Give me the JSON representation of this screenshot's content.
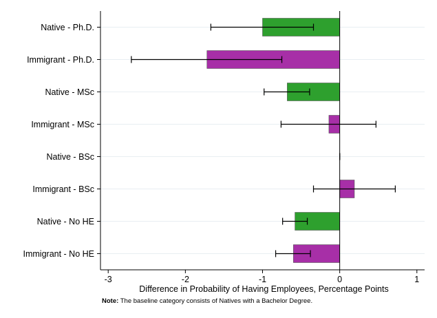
{
  "chart_data": {
    "type": "bar",
    "orientation": "horizontal",
    "categories": [
      "Native - Ph.D.",
      "Immigrant - Ph.D.",
      "Native - MSc",
      "Immigrant - MSc",
      "Native - BSc",
      "Immigrant - BSc",
      "Native - No HE",
      "Immigrant - No HE"
    ],
    "values": [
      -1.0,
      -1.72,
      -0.68,
      -0.14,
      0.0,
      0.19,
      -0.58,
      -0.6
    ],
    "ci_low": [
      -1.67,
      -2.7,
      -0.98,
      -0.76,
      0.0,
      -0.34,
      -0.74,
      -0.83
    ],
    "ci_high": [
      -0.34,
      -0.75,
      -0.39,
      0.47,
      0.0,
      0.72,
      -0.42,
      -0.38
    ],
    "bar_colors": [
      "#2ea02e",
      "#a72fa7",
      "#2ea02e",
      "#a72fa7",
      "#2ea02e",
      "#a72fa7",
      "#2ea02e",
      "#a72fa7"
    ],
    "xlabel": "Difference in Probability of Having Employees, Percentage Points",
    "ylabel": "",
    "xlim": [
      -3.1,
      1.1
    ],
    "xticks": [
      -3,
      -2,
      -1,
      0,
      1
    ],
    "xtick_labels": [
      "-3",
      "-2",
      "-1",
      "0",
      "1"
    ],
    "grid": true,
    "error_bars": true
  },
  "note": {
    "label": "Note:",
    "text": " The baseline category consists of Natives with a Bachelor Degree."
  }
}
